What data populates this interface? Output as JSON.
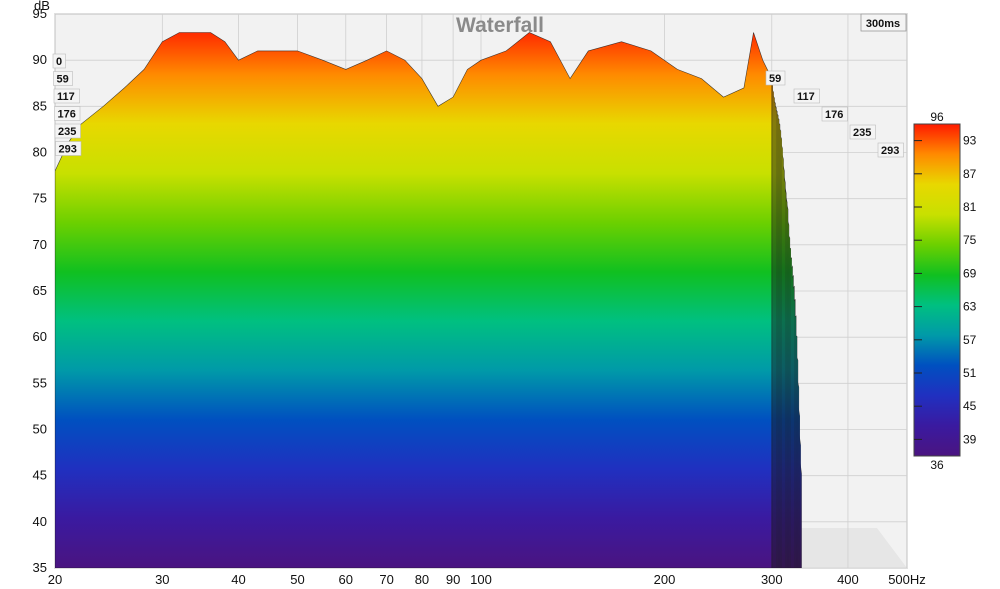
{
  "chart_data": {
    "type": "area",
    "title": "Waterfall",
    "time_badge": "300ms",
    "ylabel": "dB",
    "xunit": "Hz",
    "x_scale": "log",
    "ylim": [
      35,
      95
    ],
    "xlim": [
      20,
      500
    ],
    "yticks": [
      35,
      40,
      45,
      50,
      55,
      60,
      65,
      70,
      75,
      80,
      85,
      90,
      95
    ],
    "xticks": [
      {
        "value": 20,
        "label": "20"
      },
      {
        "value": 30,
        "label": "30"
      },
      {
        "value": 40,
        "label": "40"
      },
      {
        "value": 50,
        "label": "50"
      },
      {
        "value": 60,
        "label": "60"
      },
      {
        "value": 70,
        "label": "70"
      },
      {
        "value": 80,
        "label": "80"
      },
      {
        "value": 90,
        "label": "90"
      },
      {
        "value": 100,
        "label": "100"
      },
      {
        "value": 200,
        "label": "200"
      },
      {
        "value": 300,
        "label": "300"
      },
      {
        "value": 400,
        "label": "400"
      },
      {
        "value": 500,
        "label": "500Hz"
      }
    ],
    "time_slice_labels_left": [
      "0",
      "59",
      "117",
      "176",
      "235",
      "293"
    ],
    "time_slice_labels_right": [
      "59",
      "117",
      "176",
      "235",
      "293"
    ],
    "colorbar": {
      "min_label": "36",
      "max_label": "96",
      "ticks": [
        "93",
        "87",
        "81",
        "75",
        "69",
        "63",
        "57",
        "51",
        "45",
        "39"
      ],
      "colors": [
        "#ff1a00",
        "#ff8a00",
        "#e8d800",
        "#c8e000",
        "#6cd000",
        "#10c020",
        "#00c080",
        "#009aa8",
        "#0050c0",
        "#2030c0",
        "#3a1aa0",
        "#4a1480"
      ]
    },
    "front_slice": {
      "name": "0",
      "freq": [
        20,
        21,
        22,
        24,
        26,
        28,
        30,
        32,
        34,
        36,
        38,
        40,
        43,
        46,
        50,
        55,
        60,
        65,
        70,
        75,
        80,
        85,
        90,
        95,
        100,
        110,
        120,
        130,
        140,
        150,
        170,
        190,
        210,
        230,
        250,
        270,
        280,
        290,
        300
      ],
      "db": [
        78,
        81,
        83,
        85,
        87,
        89,
        92,
        93,
        93,
        93,
        92,
        90,
        91,
        91,
        91,
        90,
        89,
        90,
        91,
        90,
        88,
        85,
        86,
        89,
        90,
        91,
        93,
        92,
        88,
        91,
        92,
        91,
        89,
        88,
        86,
        87,
        93,
        90,
        88
      ]
    }
  }
}
